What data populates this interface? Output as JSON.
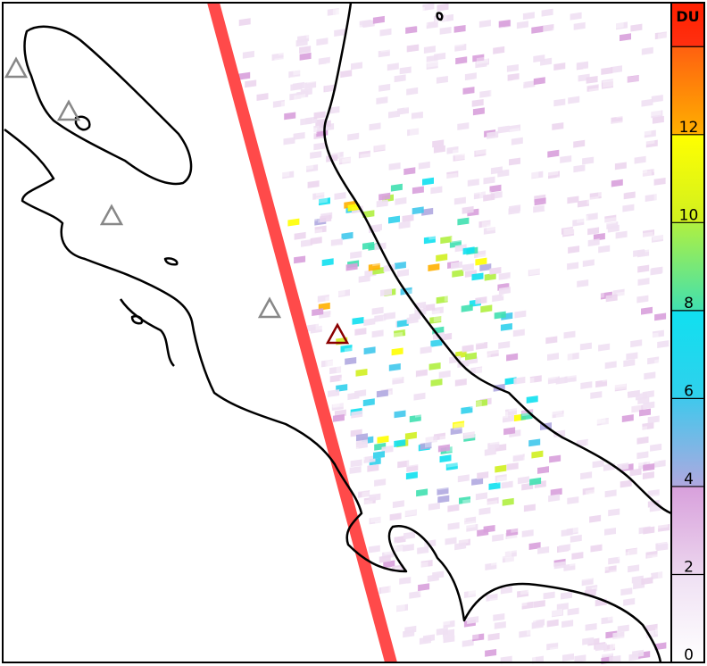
{
  "colorbar": {
    "unit": "DU",
    "range": [
      0,
      15
    ],
    "ticks": [
      {
        "value": 0,
        "label": "0"
      },
      {
        "value": 2,
        "label": "2"
      },
      {
        "value": 4,
        "label": "4"
      },
      {
        "value": 6,
        "label": "6"
      },
      {
        "value": 8,
        "label": "8"
      },
      {
        "value": 10,
        "label": "10"
      },
      {
        "value": 12,
        "label": "12"
      },
      {
        "value": 14,
        "label": ""
      }
    ],
    "bands": [
      {
        "from": 0,
        "to": 2,
        "colors": [
          "#ffffff",
          "#efe0f3"
        ]
      },
      {
        "from": 2,
        "to": 4,
        "colors": [
          "#ecd6ee",
          "#d8a0dc"
        ]
      },
      {
        "from": 4,
        "to": 6,
        "colors": [
          "#b0a8e0",
          "#40c8ec"
        ]
      },
      {
        "from": 6,
        "to": 8,
        "colors": [
          "#30d0ec",
          "#10e0f0"
        ]
      },
      {
        "from": 8,
        "to": 10,
        "colors": [
          "#40e0b0",
          "#b0f040"
        ]
      },
      {
        "from": 10,
        "to": 12,
        "colors": [
          "#d0f020",
          "#ffff00"
        ]
      },
      {
        "from": 12,
        "to": 14,
        "colors": [
          "#ffb000",
          "#ff6010"
        ]
      },
      {
        "from": 14,
        "to": 15,
        "colors": [
          "#ff3010",
          "#ff2000"
        ]
      }
    ]
  },
  "map": {
    "swath_color": "#ff4040",
    "volcano_markers": [
      {
        "status": "inactive",
        "color": "#888888"
      },
      {
        "status": "inactive",
        "color": "#888888"
      },
      {
        "status": "inactive",
        "color": "#888888"
      },
      {
        "status": "inactive",
        "color": "#888888"
      },
      {
        "status": "active",
        "color": "#8b0000"
      }
    ]
  }
}
